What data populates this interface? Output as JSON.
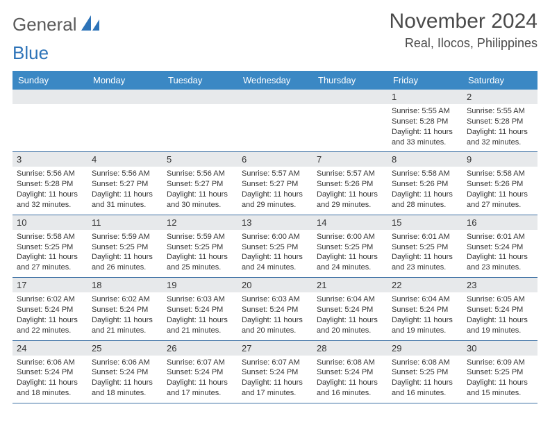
{
  "brand": {
    "name_part1": "General",
    "name_part2": "Blue",
    "text_color": "#5b5b5b",
    "accent_color": "#2d73b8"
  },
  "title": {
    "month_year": "November 2024",
    "location": "Real, Ilocos, Philippines",
    "title_fontsize": 30,
    "location_fontsize": 18,
    "title_color": "#4a4a4a"
  },
  "calendar": {
    "header_bg": "#3b88c4",
    "header_fg": "#ffffff",
    "daynum_bg": "#e7e9eb",
    "border_color": "#3b6fa3",
    "body_fontsize": 11,
    "days_of_week": [
      "Sunday",
      "Monday",
      "Tuesday",
      "Wednesday",
      "Thursday",
      "Friday",
      "Saturday"
    ],
    "weeks": [
      [
        {
          "empty": true
        },
        {
          "empty": true
        },
        {
          "empty": true
        },
        {
          "empty": true
        },
        {
          "empty": true
        },
        {
          "day": "1",
          "sunrise": "5:55 AM",
          "sunset": "5:28 PM",
          "daylight": "11 hours and 33 minutes."
        },
        {
          "day": "2",
          "sunrise": "5:55 AM",
          "sunset": "5:28 PM",
          "daylight": "11 hours and 32 minutes."
        }
      ],
      [
        {
          "day": "3",
          "sunrise": "5:56 AM",
          "sunset": "5:28 PM",
          "daylight": "11 hours and 32 minutes."
        },
        {
          "day": "4",
          "sunrise": "5:56 AM",
          "sunset": "5:27 PM",
          "daylight": "11 hours and 31 minutes."
        },
        {
          "day": "5",
          "sunrise": "5:56 AM",
          "sunset": "5:27 PM",
          "daylight": "11 hours and 30 minutes."
        },
        {
          "day": "6",
          "sunrise": "5:57 AM",
          "sunset": "5:27 PM",
          "daylight": "11 hours and 29 minutes."
        },
        {
          "day": "7",
          "sunrise": "5:57 AM",
          "sunset": "5:26 PM",
          "daylight": "11 hours and 29 minutes."
        },
        {
          "day": "8",
          "sunrise": "5:58 AM",
          "sunset": "5:26 PM",
          "daylight": "11 hours and 28 minutes."
        },
        {
          "day": "9",
          "sunrise": "5:58 AM",
          "sunset": "5:26 PM",
          "daylight": "11 hours and 27 minutes."
        }
      ],
      [
        {
          "day": "10",
          "sunrise": "5:58 AM",
          "sunset": "5:25 PM",
          "daylight": "11 hours and 27 minutes."
        },
        {
          "day": "11",
          "sunrise": "5:59 AM",
          "sunset": "5:25 PM",
          "daylight": "11 hours and 26 minutes."
        },
        {
          "day": "12",
          "sunrise": "5:59 AM",
          "sunset": "5:25 PM",
          "daylight": "11 hours and 25 minutes."
        },
        {
          "day": "13",
          "sunrise": "6:00 AM",
          "sunset": "5:25 PM",
          "daylight": "11 hours and 24 minutes."
        },
        {
          "day": "14",
          "sunrise": "6:00 AM",
          "sunset": "5:25 PM",
          "daylight": "11 hours and 24 minutes."
        },
        {
          "day": "15",
          "sunrise": "6:01 AM",
          "sunset": "5:25 PM",
          "daylight": "11 hours and 23 minutes."
        },
        {
          "day": "16",
          "sunrise": "6:01 AM",
          "sunset": "5:24 PM",
          "daylight": "11 hours and 23 minutes."
        }
      ],
      [
        {
          "day": "17",
          "sunrise": "6:02 AM",
          "sunset": "5:24 PM",
          "daylight": "11 hours and 22 minutes."
        },
        {
          "day": "18",
          "sunrise": "6:02 AM",
          "sunset": "5:24 PM",
          "daylight": "11 hours and 21 minutes."
        },
        {
          "day": "19",
          "sunrise": "6:03 AM",
          "sunset": "5:24 PM",
          "daylight": "11 hours and 21 minutes."
        },
        {
          "day": "20",
          "sunrise": "6:03 AM",
          "sunset": "5:24 PM",
          "daylight": "11 hours and 20 minutes."
        },
        {
          "day": "21",
          "sunrise": "6:04 AM",
          "sunset": "5:24 PM",
          "daylight": "11 hours and 20 minutes."
        },
        {
          "day": "22",
          "sunrise": "6:04 AM",
          "sunset": "5:24 PM",
          "daylight": "11 hours and 19 minutes."
        },
        {
          "day": "23",
          "sunrise": "6:05 AM",
          "sunset": "5:24 PM",
          "daylight": "11 hours and 19 minutes."
        }
      ],
      [
        {
          "day": "24",
          "sunrise": "6:06 AM",
          "sunset": "5:24 PM",
          "daylight": "11 hours and 18 minutes."
        },
        {
          "day": "25",
          "sunrise": "6:06 AM",
          "sunset": "5:24 PM",
          "daylight": "11 hours and 18 minutes."
        },
        {
          "day": "26",
          "sunrise": "6:07 AM",
          "sunset": "5:24 PM",
          "daylight": "11 hours and 17 minutes."
        },
        {
          "day": "27",
          "sunrise": "6:07 AM",
          "sunset": "5:24 PM",
          "daylight": "11 hours and 17 minutes."
        },
        {
          "day": "28",
          "sunrise": "6:08 AM",
          "sunset": "5:24 PM",
          "daylight": "11 hours and 16 minutes."
        },
        {
          "day": "29",
          "sunrise": "6:08 AM",
          "sunset": "5:25 PM",
          "daylight": "11 hours and 16 minutes."
        },
        {
          "day": "30",
          "sunrise": "6:09 AM",
          "sunset": "5:25 PM",
          "daylight": "11 hours and 15 minutes."
        }
      ]
    ],
    "labels": {
      "sunrise_prefix": "Sunrise: ",
      "sunset_prefix": "Sunset: ",
      "daylight_prefix": "Daylight: "
    }
  }
}
